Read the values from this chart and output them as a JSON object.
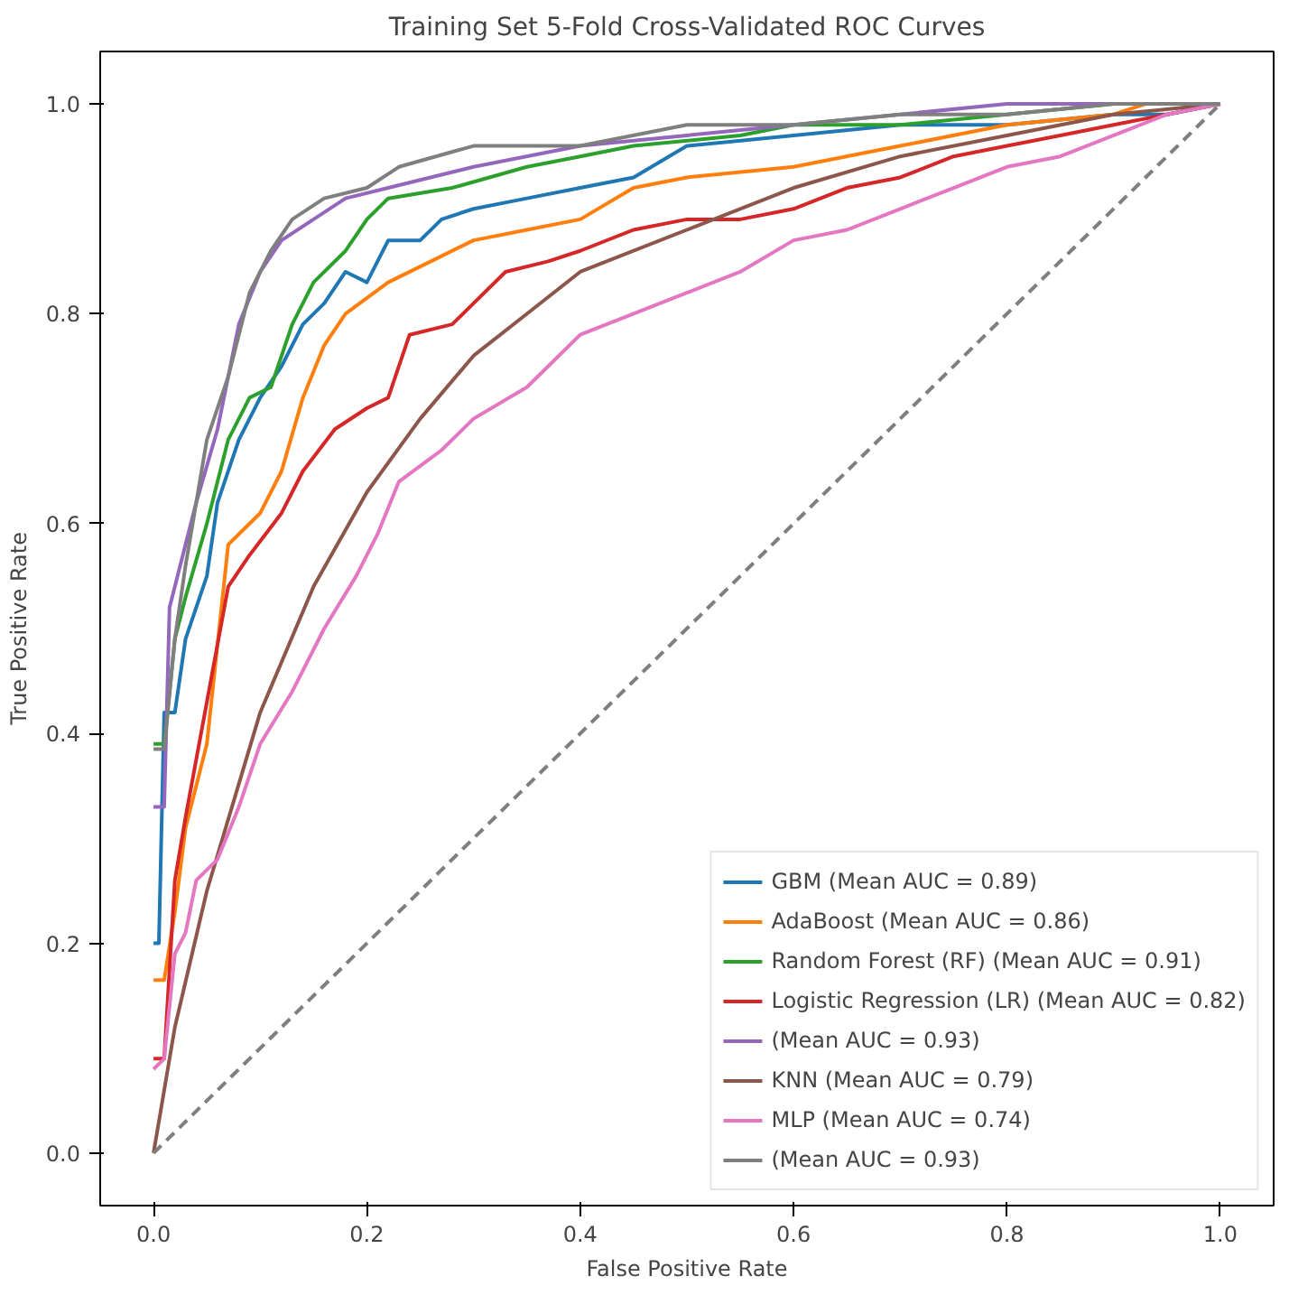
{
  "chart_data": {
    "type": "line",
    "title": "Training Set 5-Fold Cross-Validated ROC Curves",
    "xlabel": "False Positive Rate",
    "ylabel": "True Positive Rate",
    "xlim": [
      -0.05,
      1.05
    ],
    "ylim": [
      -0.05,
      1.05
    ],
    "xticks": [
      {
        "value": 0,
        "label": "0.0"
      },
      {
        "value": 0.2,
        "label": "0.2"
      },
      {
        "value": 0.4,
        "label": "0.4"
      },
      {
        "value": 0.6,
        "label": "0.6"
      },
      {
        "value": 0.8,
        "label": "0.8"
      },
      {
        "value": 1,
        "label": "1.0"
      }
    ],
    "yticks": [
      {
        "value": 0,
        "label": "0.0"
      },
      {
        "value": 0.2,
        "label": "0.2"
      },
      {
        "value": 0.4,
        "label": "0.4"
      },
      {
        "value": 0.6,
        "label": "0.6"
      },
      {
        "value": 0.8,
        "label": "0.8"
      },
      {
        "value": 1,
        "label": "1.0"
      }
    ],
    "grid": false,
    "legend": "bottom right",
    "line_style": "solid",
    "marker": "none",
    "series": [
      {
        "name": "GBM (Mean AUC = 0.89)",
        "color": "#1f77b4",
        "x": [
          0,
          0.005,
          0.01,
          0.02,
          0.03,
          0.05,
          0.06,
          0.08,
          0.1,
          0.12,
          0.14,
          0.16,
          0.18,
          0.2,
          0.22,
          0.25,
          0.27,
          0.3,
          0.35,
          0.4,
          0.45,
          0.5,
          0.6,
          0.7,
          0.8,
          0.9,
          0.95,
          1
        ],
        "values": [
          0.2,
          0.2,
          0.42,
          0.42,
          0.49,
          0.55,
          0.62,
          0.68,
          0.72,
          0.75,
          0.79,
          0.81,
          0.84,
          0.83,
          0.87,
          0.87,
          0.89,
          0.9,
          0.91,
          0.92,
          0.93,
          0.96,
          0.97,
          0.98,
          0.98,
          0.99,
          0.99,
          1
        ]
      },
      {
        "name": "AdaBoost (Mean AUC = 0.86)",
        "color": "#ff7f0e",
        "x": [
          0,
          0.01,
          0.02,
          0.03,
          0.05,
          0.07,
          0.1,
          0.12,
          0.14,
          0.16,
          0.18,
          0.22,
          0.26,
          0.3,
          0.35,
          0.4,
          0.45,
          0.5,
          0.6,
          0.7,
          0.8,
          0.9,
          0.93,
          1
        ],
        "values": [
          0.165,
          0.165,
          0.23,
          0.31,
          0.39,
          0.58,
          0.61,
          0.65,
          0.72,
          0.77,
          0.8,
          0.83,
          0.85,
          0.87,
          0.88,
          0.89,
          0.92,
          0.93,
          0.94,
          0.96,
          0.98,
          0.99,
          1,
          1
        ]
      },
      {
        "name": "Random Forest (RF) (Mean AUC = 0.91)",
        "color": "#2ca02c",
        "x": [
          0,
          0.01,
          0.02,
          0.03,
          0.05,
          0.07,
          0.09,
          0.11,
          0.13,
          0.15,
          0.18,
          0.2,
          0.22,
          0.28,
          0.35,
          0.4,
          0.45,
          0.55,
          0.6,
          0.7,
          0.8,
          0.9,
          1
        ],
        "values": [
          0.39,
          0.39,
          0.49,
          0.53,
          0.6,
          0.68,
          0.72,
          0.73,
          0.79,
          0.83,
          0.86,
          0.89,
          0.91,
          0.92,
          0.94,
          0.95,
          0.96,
          0.97,
          0.98,
          0.98,
          0.99,
          1,
          1
        ]
      },
      {
        "name": "Logistic Regression (LR) (Mean AUC = 0.82)",
        "color": "#d62728",
        "x": [
          0,
          0.01,
          0.02,
          0.03,
          0.05,
          0.07,
          0.09,
          0.12,
          0.14,
          0.17,
          0.2,
          0.22,
          0.24,
          0.28,
          0.3,
          0.33,
          0.37,
          0.4,
          0.45,
          0.5,
          0.55,
          0.6,
          0.65,
          0.7,
          0.75,
          0.8,
          0.85,
          0.9,
          0.95,
          1
        ],
        "values": [
          0.09,
          0.09,
          0.26,
          0.32,
          0.43,
          0.54,
          0.57,
          0.61,
          0.65,
          0.69,
          0.71,
          0.72,
          0.78,
          0.79,
          0.81,
          0.84,
          0.85,
          0.86,
          0.88,
          0.89,
          0.89,
          0.9,
          0.92,
          0.93,
          0.95,
          0.96,
          0.97,
          0.98,
          0.99,
          1
        ]
      },
      {
        "name": "(Mean AUC = 0.93)",
        "color": "#9467bd",
        "x": [
          0,
          0.01,
          0.015,
          0.03,
          0.04,
          0.06,
          0.08,
          0.1,
          0.12,
          0.15,
          0.18,
          0.22,
          0.3,
          0.4,
          0.5,
          0.6,
          0.7,
          0.8,
          1
        ],
        "values": [
          0.33,
          0.33,
          0.52,
          0.58,
          0.62,
          0.69,
          0.79,
          0.84,
          0.87,
          0.89,
          0.91,
          0.92,
          0.94,
          0.96,
          0.97,
          0.98,
          0.99,
          1,
          1
        ]
      },
      {
        "name": "KNN (Mean AUC = 0.79)",
        "color": "#8c564b",
        "x": [
          0,
          0.02,
          0.05,
          0.1,
          0.15,
          0.2,
          0.25,
          0.3,
          0.35,
          0.4,
          0.5,
          0.6,
          0.7,
          0.8,
          0.9,
          1
        ],
        "values": [
          0,
          0.12,
          0.25,
          0.42,
          0.54,
          0.63,
          0.7,
          0.76,
          0.8,
          0.84,
          0.88,
          0.92,
          0.95,
          0.97,
          0.99,
          1
        ]
      },
      {
        "name": "MLP (Mean AUC = 0.74)",
        "color": "#e377c2",
        "x": [
          0,
          0.01,
          0.02,
          0.03,
          0.04,
          0.06,
          0.08,
          0.1,
          0.13,
          0.16,
          0.19,
          0.21,
          0.23,
          0.27,
          0.3,
          0.35,
          0.37,
          0.4,
          0.45,
          0.5,
          0.55,
          0.6,
          0.65,
          0.7,
          0.75,
          0.8,
          0.85,
          0.9,
          0.95,
          1
        ],
        "values": [
          0.08,
          0.09,
          0.19,
          0.21,
          0.26,
          0.28,
          0.33,
          0.39,
          0.44,
          0.5,
          0.55,
          0.59,
          0.64,
          0.67,
          0.7,
          0.73,
          0.75,
          0.78,
          0.8,
          0.82,
          0.84,
          0.87,
          0.88,
          0.9,
          0.92,
          0.94,
          0.95,
          0.97,
          0.99,
          1
        ]
      },
      {
        "name": "(Mean AUC = 0.93)",
        "color": "#7f7f7f",
        "x": [
          0,
          0.01,
          0.02,
          0.03,
          0.05,
          0.07,
          0.09,
          0.11,
          0.13,
          0.16,
          0.2,
          0.23,
          0.3,
          0.4,
          0.5,
          0.6,
          0.7,
          0.8,
          0.9,
          1
        ],
        "values": [
          0.385,
          0.385,
          0.49,
          0.56,
          0.68,
          0.74,
          0.82,
          0.86,
          0.89,
          0.91,
          0.92,
          0.94,
          0.96,
          0.96,
          0.98,
          0.98,
          0.99,
          0.99,
          1,
          1
        ]
      },
      {
        "color": "#7f7f7f",
        "line_style": "dashed",
        "x": [
          0,
          1
        ],
        "values": [
          0,
          1
        ]
      }
    ]
  }
}
